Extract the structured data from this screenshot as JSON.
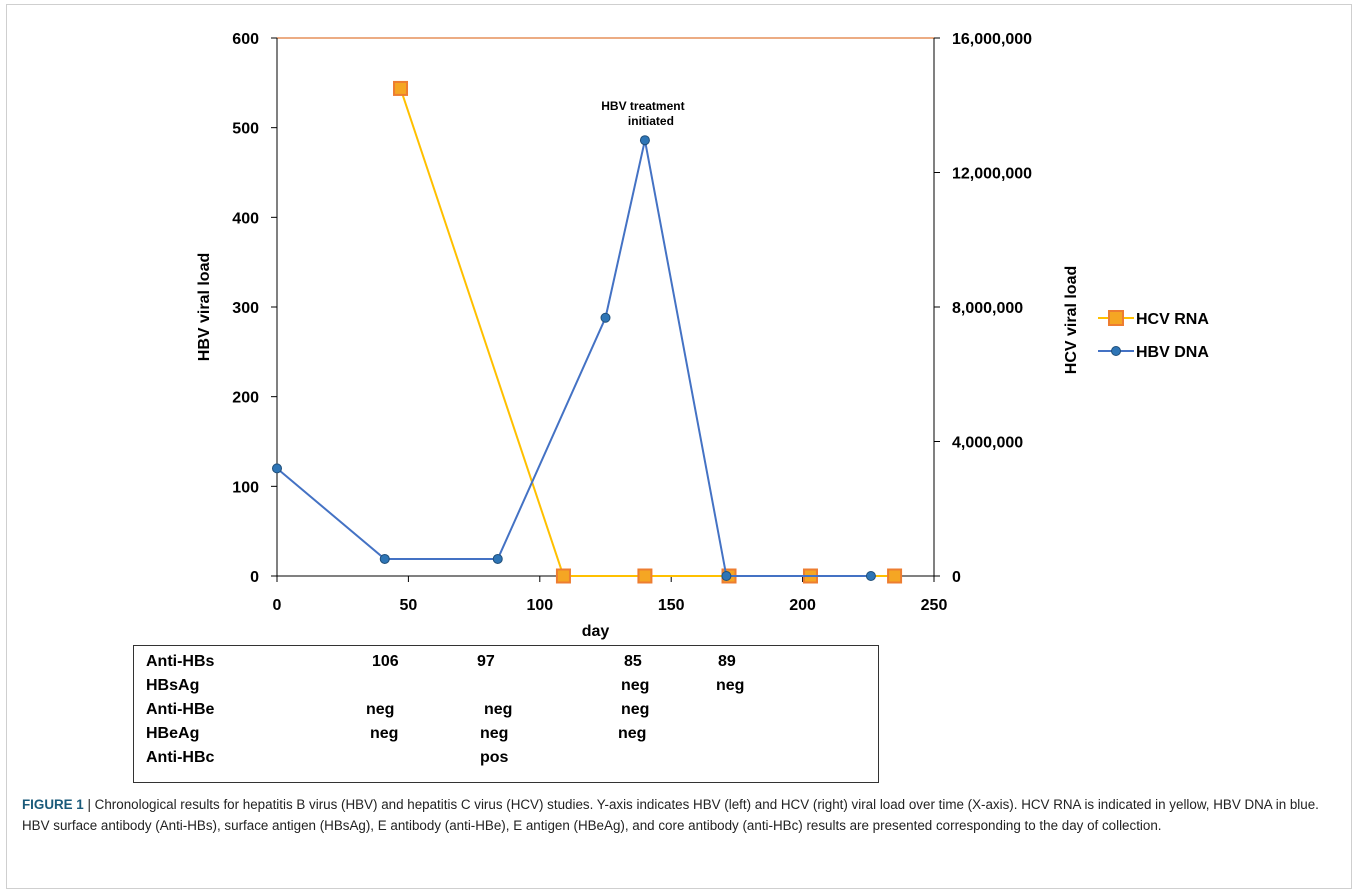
{
  "chart_data": {
    "type": "line",
    "xlabel": "day",
    "ylabel_left": "HBV viral load",
    "ylabel_right": "HCV viral load",
    "xlim": [
      0,
      250
    ],
    "ylim_left": [
      0,
      600
    ],
    "ylim_right": [
      0,
      16000000
    ],
    "x_ticks": [
      "0",
      "50",
      "100",
      "150",
      "200",
      "250"
    ],
    "y_left_ticks": [
      "0",
      "100",
      "200",
      "300",
      "400",
      "500",
      "600"
    ],
    "y_right_ticks": [
      "0",
      "4,000,000",
      "8,000,000",
      "12,000,000",
      "16,000,000"
    ],
    "series": [
      {
        "name": "HCV RNA",
        "axis": "right",
        "color": "#ffc000",
        "marker": "square",
        "marker_fill": "#f5a623",
        "marker_edge": "#ed7d31",
        "x": [
          47,
          109,
          140,
          172,
          203,
          235
        ],
        "y": [
          14500000,
          0,
          0,
          0,
          0,
          0
        ]
      },
      {
        "name": "HBV DNA",
        "axis": "left",
        "color": "#4472c4",
        "marker": "circle",
        "marker_fill": "#2e75b6",
        "x": [
          0,
          41,
          84,
          125,
          140,
          171,
          226
        ],
        "y": [
          120,
          19,
          19,
          288,
          486,
          0,
          0
        ]
      }
    ],
    "annotations": [
      {
        "lines": [
          "HBV treatment",
          "initiated"
        ],
        "x": 140,
        "y": 486
      }
    ],
    "top_line_color": "#e07b39",
    "legend_position": "right"
  },
  "lab_table": {
    "row_labels": [
      "Anti-HBs",
      "HBsAg",
      "Anti-HBe",
      "HBeAg",
      "Anti-HBc"
    ],
    "rows": [
      [
        "106",
        "97",
        "85",
        "89"
      ],
      [
        "neg",
        "neg"
      ],
      [
        "neg",
        "neg",
        "neg"
      ],
      [
        "neg",
        "neg",
        "neg"
      ],
      [
        "pos"
      ]
    ]
  },
  "caption": {
    "label": "FIGURE 1",
    "text": " | Chronological results for hepatitis B virus (HBV) and hepatitis C virus (HCV) studies. Y-axis indicates HBV (left) and HCV (right) viral load over time (X-axis). HCV RNA is indicated in yellow, HBV DNA in blue. HBV surface antibody (Anti-HBs), surface antigen (HBsAg), E antibody (anti-HBe), E antigen (HBeAg), and core antibody (anti-HBc) results are presented corresponding to the day of collection."
  }
}
